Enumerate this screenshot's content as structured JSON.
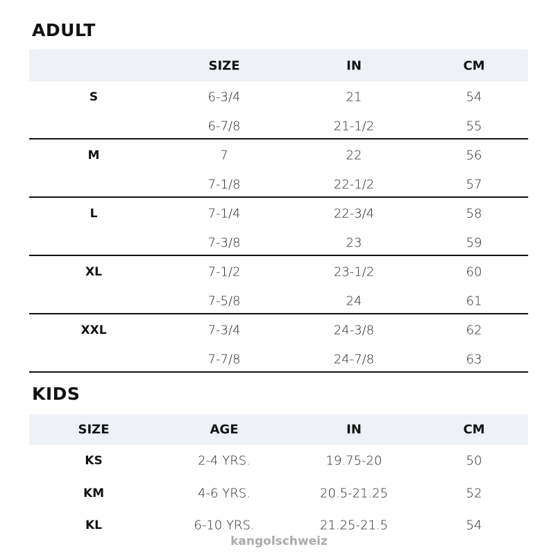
{
  "adult": {
    "title": "ADULT",
    "headers": [
      "",
      "SIZE",
      "IN",
      "CM"
    ],
    "groups": [
      {
        "label": "S",
        "rows": [
          [
            "6-3/4",
            "21",
            "54"
          ],
          [
            "6-7/8",
            "21-1/2",
            "55"
          ]
        ]
      },
      {
        "label": "M",
        "rows": [
          [
            "7",
            "22",
            "56"
          ],
          [
            "7-1/8",
            "22-1/2",
            "57"
          ]
        ]
      },
      {
        "label": "L",
        "rows": [
          [
            "7-1/4",
            "22-3/4",
            "58"
          ],
          [
            "7-3/8",
            "23",
            "59"
          ]
        ]
      },
      {
        "label": "XL",
        "rows": [
          [
            "7-1/2",
            "23-1/2",
            "60"
          ],
          [
            "7-5/8",
            "24",
            "61"
          ]
        ]
      },
      {
        "label": "XXL",
        "rows": [
          [
            "7-3/4",
            "24-3/8",
            "62"
          ],
          [
            "7-7/8",
            "24-7/8",
            "63"
          ]
        ]
      }
    ]
  },
  "kids": {
    "title": "KIDS",
    "headers": [
      "SIZE",
      "AGE",
      "IN",
      "CM"
    ],
    "rows": [
      [
        "KS",
        "2-4 YRS.",
        "19.75-20",
        "50"
      ],
      [
        "KM",
        "4-6 YRS.",
        "20.5-21.25",
        "52"
      ],
      [
        "KL",
        "6-10 YRS.",
        "21.25-21.5",
        "54"
      ]
    ]
  },
  "watermark": "kangolschweiz",
  "colors": {
    "header_band": "#eef2f7",
    "rule": "#111111",
    "watermark": "#aaaaaa"
  }
}
